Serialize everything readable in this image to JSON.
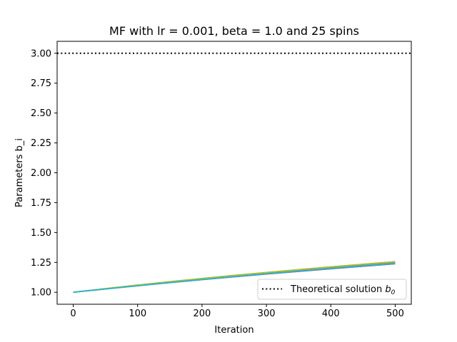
{
  "chart_data": {
    "type": "line",
    "title": "MF with lr = 0.001, beta = 1.0 and 25 spins",
    "xlabel": "Iteration",
    "ylabel": "Parameters b_i",
    "xlim": [
      -25,
      525
    ],
    "ylim": [
      0.9,
      3.1
    ],
    "xticks": [
      0,
      100,
      200,
      300,
      400,
      500
    ],
    "xtick_labels": [
      "0",
      "100",
      "200",
      "300",
      "400",
      "500"
    ],
    "yticks": [
      1.0,
      1.25,
      1.5,
      1.75,
      2.0,
      2.25,
      2.5,
      2.75,
      3.0
    ],
    "ytick_labels": [
      "1.00",
      "1.25",
      "1.50",
      "1.75",
      "2.00",
      "2.25",
      "2.50",
      "2.75",
      "3.00"
    ],
    "grid": false,
    "legend_position": "lower right",
    "reference_line": {
      "y": 3.0,
      "style": "dotted",
      "color": "#000000"
    },
    "legend": {
      "label_text": "Theoretical solution ",
      "label_math": "b",
      "label_sub": "0"
    },
    "x": [
      0,
      50,
      100,
      150,
      200,
      250,
      300,
      350,
      400,
      450,
      500
    ],
    "series": [
      {
        "color": "#1f77b4",
        "values": [
          1.0,
          1.028,
          1.055,
          1.081,
          1.106,
          1.13,
          1.153,
          1.175,
          1.197,
          1.218,
          1.239
        ]
      },
      {
        "color": "#ff7f0e",
        "values": [
          1.0,
          1.029,
          1.057,
          1.084,
          1.11,
          1.135,
          1.159,
          1.182,
          1.204,
          1.226,
          1.247
        ]
      },
      {
        "color": "#2ca02c",
        "values": [
          1.0,
          1.031,
          1.061,
          1.089,
          1.116,
          1.142,
          1.166,
          1.19,
          1.213,
          1.235,
          1.256
        ]
      },
      {
        "color": "#d62728",
        "values": [
          1.0,
          1.03,
          1.059,
          1.087,
          1.114,
          1.14,
          1.164,
          1.188,
          1.211,
          1.233,
          1.255
        ]
      },
      {
        "color": "#9467bd",
        "values": [
          1.0,
          1.027,
          1.054,
          1.08,
          1.105,
          1.129,
          1.152,
          1.174,
          1.196,
          1.217,
          1.238
        ]
      },
      {
        "color": "#8c564b",
        "values": [
          1.0,
          1.029,
          1.058,
          1.085,
          1.112,
          1.137,
          1.161,
          1.185,
          1.207,
          1.229,
          1.25
        ]
      },
      {
        "color": "#e377c2",
        "values": [
          1.0,
          1.028,
          1.056,
          1.083,
          1.109,
          1.134,
          1.158,
          1.181,
          1.203,
          1.225,
          1.246
        ]
      },
      {
        "color": "#7f7f7f",
        "values": [
          1.0,
          1.03,
          1.058,
          1.086,
          1.113,
          1.138,
          1.163,
          1.187,
          1.209,
          1.231,
          1.252
        ]
      },
      {
        "color": "#bcbd22",
        "values": [
          1.0,
          1.031,
          1.06,
          1.088,
          1.115,
          1.141,
          1.165,
          1.189,
          1.212,
          1.234,
          1.255
        ]
      },
      {
        "color": "#17becf",
        "values": [
          1.0,
          1.028,
          1.055,
          1.082,
          1.107,
          1.132,
          1.155,
          1.178,
          1.2,
          1.221,
          1.242
        ]
      }
    ]
  }
}
